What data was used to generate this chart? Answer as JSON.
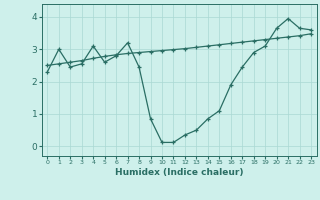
{
  "line1_x": [
    0,
    1,
    2,
    3,
    4,
    5,
    6,
    7,
    8,
    9,
    10,
    11,
    12,
    13,
    14,
    15,
    16,
    17,
    18,
    19,
    20,
    21,
    22,
    23
  ],
  "line1_y": [
    2.3,
    3.0,
    2.45,
    2.55,
    3.1,
    2.6,
    2.8,
    3.2,
    2.45,
    0.85,
    0.12,
    0.12,
    0.35,
    0.5,
    0.85,
    1.1,
    1.9,
    2.45,
    2.9,
    3.1,
    3.65,
    3.95,
    3.65,
    3.6
  ],
  "line2_x": [
    0,
    1,
    2,
    3,
    4,
    5,
    6,
    7,
    8,
    9,
    10,
    11,
    12,
    13,
    14,
    15,
    16,
    17,
    18,
    19,
    20,
    21,
    22,
    23
  ],
  "line2_y": [
    2.5,
    2.55,
    2.6,
    2.65,
    2.72,
    2.78,
    2.83,
    2.87,
    2.9,
    2.93,
    2.96,
    2.99,
    3.02,
    3.06,
    3.1,
    3.14,
    3.18,
    3.22,
    3.26,
    3.3,
    3.34,
    3.38,
    3.42,
    3.48
  ],
  "color": "#2a6e64",
  "bg_color": "#cef0eb",
  "grid_color": "#aad8d3",
  "xlabel": "Humidex (Indice chaleur)",
  "xlim": [
    -0.5,
    23.5
  ],
  "ylim": [
    -0.3,
    4.4
  ],
  "yticks": [
    0,
    1,
    2,
    3,
    4
  ],
  "xticks": [
    0,
    1,
    2,
    3,
    4,
    5,
    6,
    7,
    8,
    9,
    10,
    11,
    12,
    13,
    14,
    15,
    16,
    17,
    18,
    19,
    20,
    21,
    22,
    23
  ]
}
